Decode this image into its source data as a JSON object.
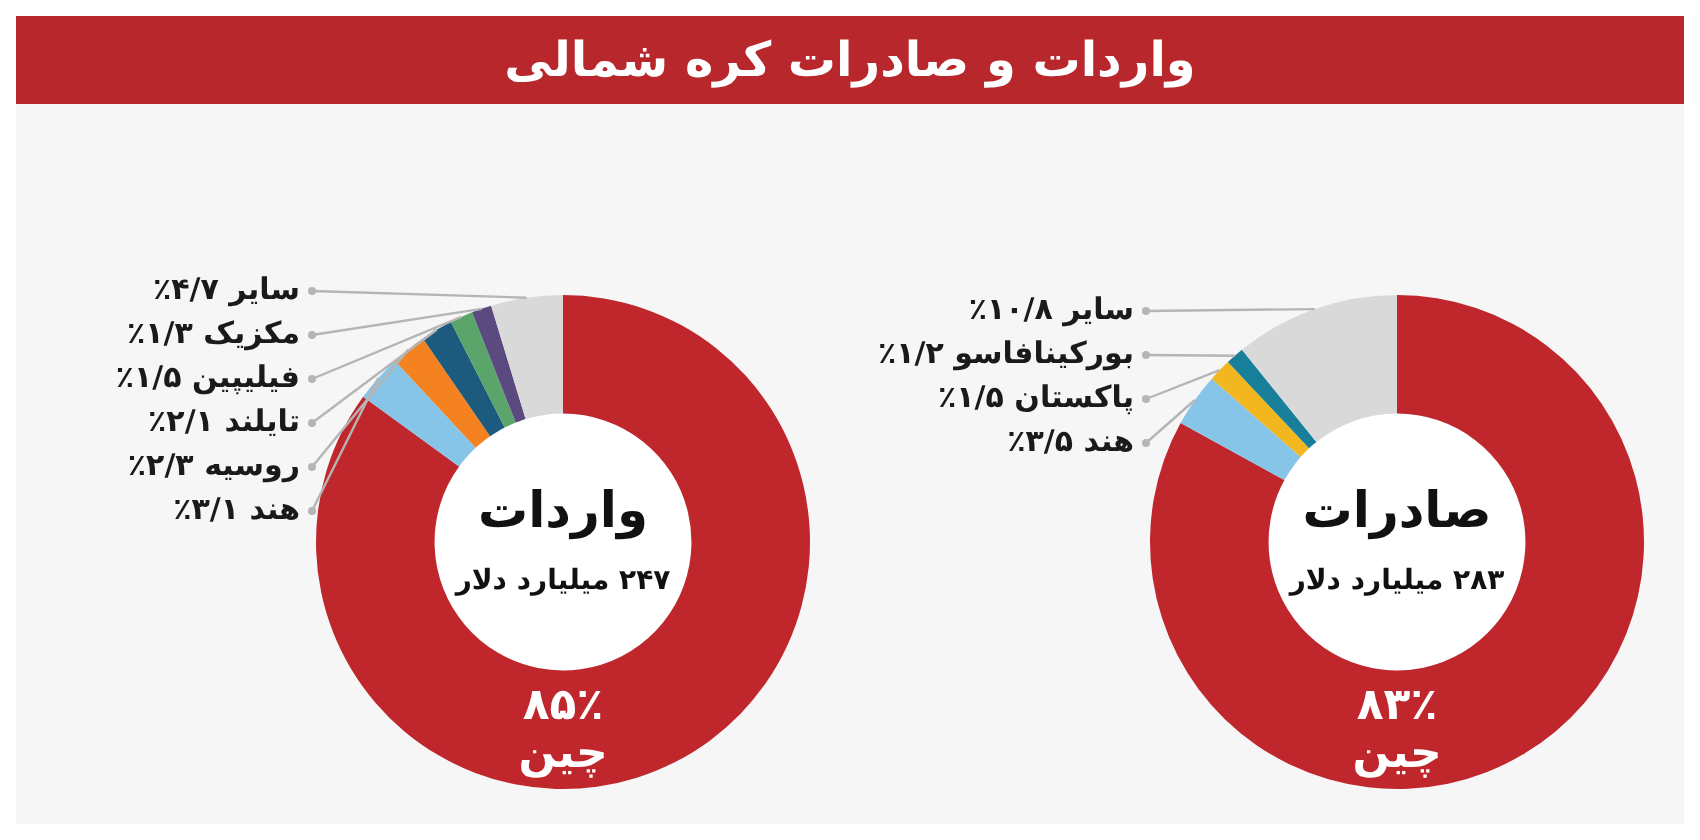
{
  "chart_data": [
    {
      "type": "other",
      "title": "واردات و صادرات کره شمالی"
    },
    {
      "type": "donut",
      "title": "واردات",
      "subtitle": "۲۴۷ میلیارد دلار",
      "legend": false,
      "categories": [
        "چین",
        "هند",
        "روسیه",
        "تایلند",
        "فیلیپین",
        "مکزیک",
        "سایر"
      ],
      "values": [
        85,
        3.1,
        2.3,
        2.1,
        1.5,
        1.3,
        4.7
      ],
      "colors": [
        "#bf272d",
        "#86c5e8",
        "#f58220",
        "#1d5b7e",
        "#5ba56a",
        "#5b4a7f",
        "#d9d9d9"
      ],
      "value_labels": [
        "۸۵٪",
        "۳/۱٪",
        "۲/۳٪",
        "۲/۱٪",
        "۱/۵٪",
        "۱/۳٪",
        "۴/۷٪"
      ]
    },
    {
      "type": "donut",
      "title": "صادرات",
      "subtitle": "۲۸۳ میلیارد دلار",
      "legend": false,
      "categories": [
        "چین",
        "هند",
        "پاکستان",
        "بورکینافاسو",
        "سایر"
      ],
      "values": [
        83,
        3.5,
        1.5,
        1.2,
        10.8
      ],
      "colors": [
        "#bf272d",
        "#86c5e8",
        "#f2b61e",
        "#177f99",
        "#d9d9d9"
      ],
      "value_labels": [
        "۸۳٪",
        "۳/۵٪",
        "۱/۵٪",
        "۱/۲٪",
        "۱۰/۸٪"
      ]
    }
  ]
}
